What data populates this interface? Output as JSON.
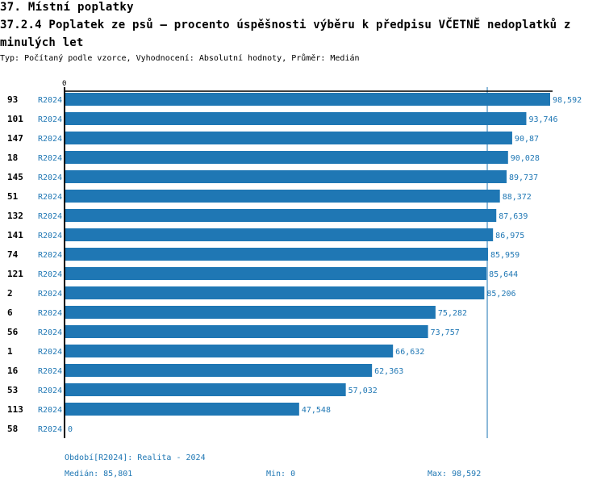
{
  "header": {
    "section": "37. Místní poplatky",
    "title": "37.2.4 Poplatek ze psů – procento úspěšnosti výběru k předpisu VČETNĚ nedoplatků z minulých let",
    "subtitle": "Typ: Počítaný podle vzorce, Vyhodnocení: Absolutní hodnoty, Průměr: Medián"
  },
  "colors": {
    "bar": "#1f77b4",
    "axis": "#000000",
    "median_line": "#1f77b4",
    "label": "#1f77b4"
  },
  "chart_data": {
    "type": "bar",
    "orientation": "horizontal",
    "title": "37.2.4 Poplatek ze psů – procento úspěšnosti výběru k předpisu VČETNĚ nedoplatků z minulých let",
    "xlabel": "",
    "ylabel": "",
    "x_tick_labels": [
      "0"
    ],
    "xlim": [
      0,
      98.592
    ],
    "grid": false,
    "period_label": "R2024",
    "categories": [
      "93",
      "101",
      "147",
      "18",
      "145",
      "51",
      "132",
      "141",
      "74",
      "121",
      "2",
      "6",
      "56",
      "1",
      "16",
      "53",
      "113",
      "58"
    ],
    "values": [
      98.592,
      93.746,
      90.87,
      90.028,
      89.737,
      88.372,
      87.639,
      86.975,
      85.959,
      85.644,
      85.206,
      75.282,
      73.757,
      66.632,
      62.363,
      57.032,
      47.548,
      0
    ],
    "value_labels": [
      "98,592",
      "93,746",
      "90,87",
      "90,028",
      "89,737",
      "88,372",
      "87,639",
      "86,975",
      "85,959",
      "85,644",
      "85,206",
      "75,282",
      "73,757",
      "66,632",
      "62,363",
      "57,032",
      "47,548",
      "0"
    ],
    "median": 85.801,
    "annotations": [
      "median reference line at 85,801"
    ]
  },
  "footer": {
    "period": "Období[R2024]: Realita - 2024",
    "median": "Medián: 85,801",
    "min": "Min: 0",
    "max": "Max: 98,592"
  }
}
